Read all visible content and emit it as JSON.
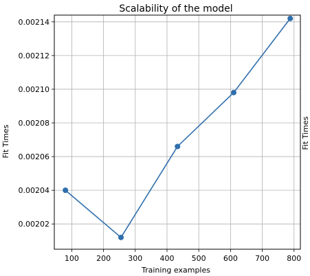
{
  "chart_data": {
    "type": "line",
    "title": "Scalability of the model",
    "xlabel": "Training examples",
    "ylabel": "Fit Times",
    "ylabel_right": "Fit Times",
    "xlim": [
      45,
      820
    ],
    "ylim": [
      0.002005,
      0.002144
    ],
    "x_ticks": [
      100,
      200,
      300,
      400,
      500,
      600,
      700,
      800
    ],
    "y_ticks": [
      0.00202,
      0.00204,
      0.00206,
      0.00208,
      0.0021,
      0.00212,
      0.00214
    ],
    "y_tick_labels": [
      "0.00202",
      "0.00204",
      "0.00206",
      "0.00208",
      "0.00210",
      "0.00212",
      "0.00214"
    ],
    "grid": true,
    "series": [
      {
        "color": "#2f6fad",
        "x": [
          80,
          255,
          433,
          610,
          788
        ],
        "y": [
          0.00204,
          0.002012,
          0.002066,
          0.002098,
          0.002142
        ]
      }
    ]
  }
}
